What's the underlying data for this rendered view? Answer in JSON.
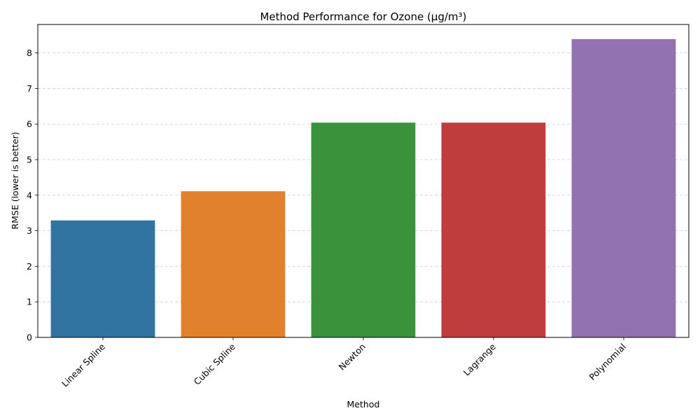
{
  "chart_data": {
    "type": "bar",
    "title": "Method Performance for Ozone (µg/m³)",
    "xlabel": "Method",
    "ylabel": "RMSE (lower is better)",
    "categories": [
      "Linear Spline",
      "Cubic Spline",
      "Newton",
      "Lagrange",
      "Polynomial"
    ],
    "values": [
      3.29,
      4.11,
      6.04,
      6.04,
      8.39
    ],
    "colors": [
      "#3274a1",
      "#e1812c",
      "#3a923a",
      "#c03d3e",
      "#9372b2"
    ],
    "ylim": [
      0,
      8.8
    ],
    "yticks": [
      0,
      1,
      2,
      3,
      4,
      5,
      6,
      7,
      8
    ],
    "grid": "y-dashed",
    "x_tick_rotation": 45
  }
}
